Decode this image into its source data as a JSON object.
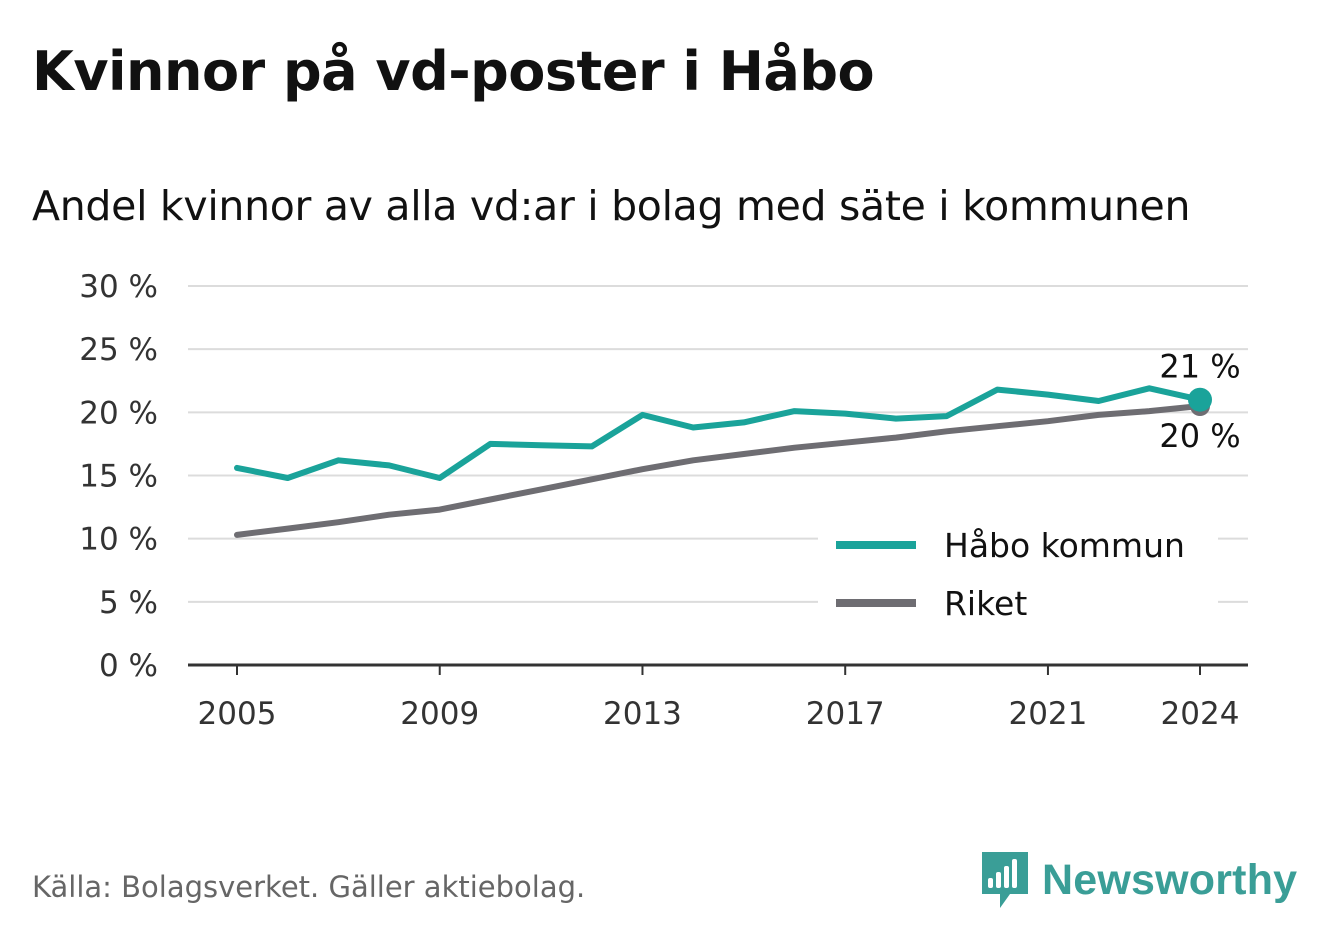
{
  "header": {
    "title": "Kvinnor på vd-poster i Håbo",
    "subtitle": "Andel kvinnor av alla vd:ar i bolag med säte i kommunen"
  },
  "footer": {
    "source": "Källa: Bolagsverket. Gäller aktiebolag.",
    "brand": "Newsworthy"
  },
  "chart_data": {
    "type": "line",
    "x": [
      2005,
      2006,
      2007,
      2008,
      2009,
      2010,
      2011,
      2012,
      2013,
      2014,
      2015,
      2016,
      2017,
      2018,
      2019,
      2020,
      2021,
      2022,
      2023,
      2024
    ],
    "series": [
      {
        "name": "Håbo kommun",
        "color": "#1aa39a",
        "values": [
          15.6,
          14.8,
          16.2,
          15.8,
          14.8,
          17.5,
          17.4,
          17.3,
          19.8,
          18.8,
          19.2,
          20.1,
          19.9,
          19.5,
          19.7,
          21.8,
          21.4,
          20.9,
          21.9,
          21.0
        ],
        "end_label": "21 %"
      },
      {
        "name": "Riket",
        "color": "#6e6d72",
        "values": [
          10.3,
          10.8,
          11.3,
          11.9,
          12.3,
          13.1,
          13.9,
          14.7,
          15.5,
          16.2,
          16.7,
          17.2,
          17.6,
          18.0,
          18.5,
          18.9,
          19.3,
          19.8,
          20.1,
          20.5
        ],
        "end_label": "20 %"
      }
    ],
    "x_ticks": [
      2005,
      2009,
      2013,
      2017,
      2021,
      2024
    ],
    "y_ticks": [
      0,
      5,
      10,
      15,
      20,
      25,
      30
    ],
    "y_tick_labels": [
      "0 %",
      "5 %",
      "10 %",
      "15 %",
      "20 %",
      "25 %",
      "30 %"
    ],
    "ylim": [
      0,
      30
    ],
    "xlim": [
      2005,
      2024
    ],
    "grid": true,
    "legend_position": "bottom-right"
  }
}
